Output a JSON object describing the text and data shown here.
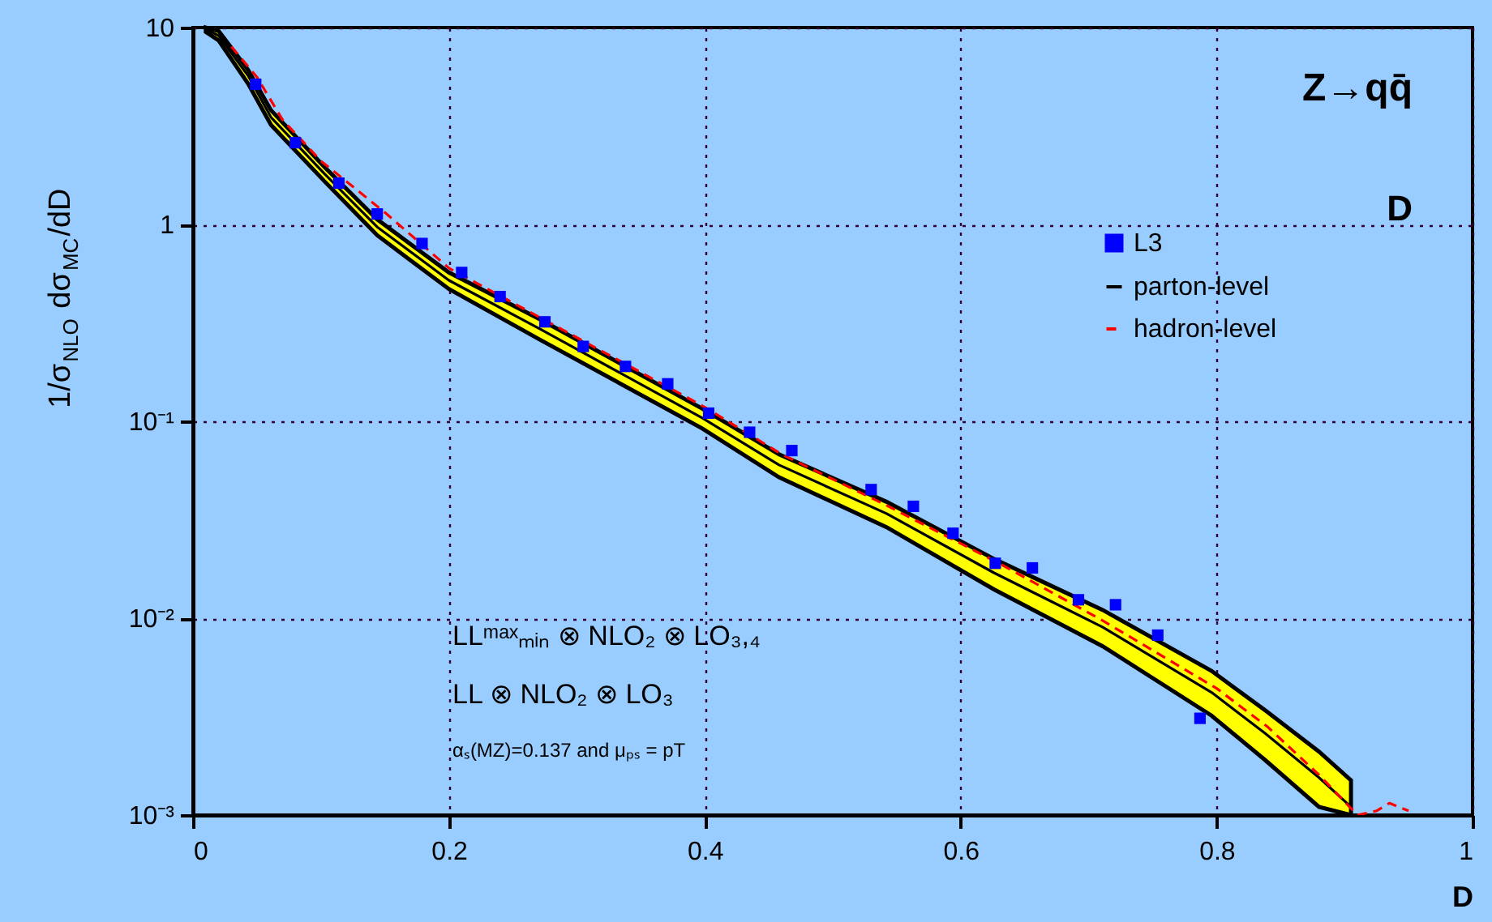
{
  "chart_data": {
    "type": "line",
    "xlabel": "D",
    "ylabel": "1/σ$_{NLO}$ dσ$_{MC}$/dD",
    "xlim": [
      0,
      1
    ],
    "xticks": [
      0,
      0.2,
      0.4,
      0.6,
      0.8,
      1
    ],
    "ylim": [
      0.001,
      10
    ],
    "yticks": [
      10,
      1,
      {
        "value": 0.1,
        "label": "10⁻¹"
      },
      {
        "value": 0.01,
        "label": "10⁻²"
      },
      {
        "value": 0.001,
        "label": "10⁻³"
      }
    ],
    "log": "y",
    "grid": true,
    "legend": "top right",
    "series": [
      {
        "name": "L3",
        "type": "scatter",
        "color": "#0000ff",
        "marker": "square",
        "x": [
          0.049,
          0.08,
          0.114,
          0.144,
          0.179,
          0.21,
          0.24,
          0.275,
          0.305,
          0.338,
          0.371,
          0.403,
          0.435,
          0.468,
          0.53,
          0.563,
          0.594,
          0.627,
          0.656,
          0.692,
          0.721,
          0.754,
          0.787
        ],
        "values": [
          5.15,
          2.6,
          1.62,
          1.13,
          0.8,
          0.57,
          0.43,
          0.32,
          0.24,
          0.19,
          0.155,
          0.11,
          0.088,
          0.071,
          0.045,
          0.037,
          0.027,
          0.019,
          0.018,
          0.0124,
          0.0117,
          0.0082,
          0.0031
        ]
      },
      {
        "name": "parton-level",
        "color": "#000000",
        "line_style": "solid",
        "x": [
          0.01,
          0.02,
          0.043,
          0.061,
          0.103,
          0.144,
          0.2,
          0.271,
          0.398,
          0.458,
          0.542,
          0.626,
          0.711,
          0.796,
          0.838,
          0.88,
          0.905
        ],
        "values": [
          9.8,
          9.1,
          5.7,
          3.5,
          1.8,
          0.97,
          0.52,
          0.295,
          0.104,
          0.06,
          0.034,
          0.017,
          0.009,
          0.0042,
          0.0026,
          0.00155,
          0.0011
        ],
        "lower": [
          9.5,
          8.6,
          5.2,
          3.2,
          1.65,
          0.88,
          0.47,
          0.26,
          0.092,
          0.052,
          0.029,
          0.014,
          0.0072,
          0.0032,
          0.0019,
          0.0011,
          0.001
        ],
        "upper": [
          10,
          9.6,
          6.1,
          3.8,
          1.95,
          1.06,
          0.57,
          0.33,
          0.116,
          0.068,
          0.039,
          0.02,
          0.011,
          0.0054,
          0.0034,
          0.0021,
          0.0015
        ]
      },
      {
        "name": "hadron-level",
        "color": "#ff0000",
        "line_style": "dashed",
        "x": [
          0.03,
          0.05,
          0.07,
          0.1,
          0.15,
          0.2,
          0.27,
          0.4,
          0.46,
          0.54,
          0.63,
          0.71,
          0.8,
          0.84,
          0.88,
          0.91,
          0.925,
          0.935,
          0.95
        ],
        "values": [
          8.0,
          5.6,
          3.4,
          2.1,
          1.15,
          0.6,
          0.34,
          0.118,
          0.068,
          0.038,
          0.019,
          0.0098,
          0.0044,
          0.0028,
          0.0016,
          0.001,
          0.00105,
          0.00115,
          0.00105
        ]
      }
    ],
    "annotations": [
      "Z→qq̄",
      "D",
      "LLᵐᵃˣₘᵢₙ ⊗ NLO₂ ⊗ LO₃,₄",
      "LL ⊗ NLO₂ ⊗ LO₃",
      "αₛ(MZ)=0.137 and μₚₛ = pT"
    ]
  }
}
